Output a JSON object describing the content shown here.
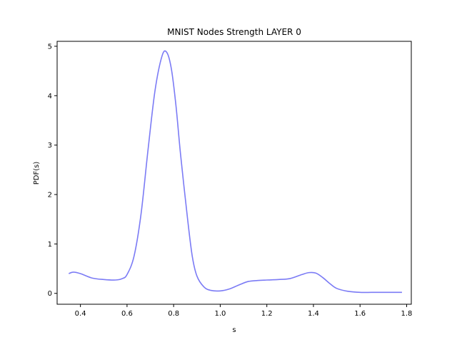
{
  "chart_data": {
    "type": "line",
    "title": "MNIST Nodes Strength LAYER 0",
    "xlabel": "s",
    "ylabel": "PDF(s)",
    "xlim": [
      0.3,
      1.82
    ],
    "ylim": [
      -0.22,
      5.1
    ],
    "xticks": [
      0.4,
      0.6,
      0.8,
      1.0,
      1.2,
      1.4,
      1.6,
      1.8
    ],
    "xtick_labels": [
      "0.4",
      "0.6",
      "0.8",
      "1.0",
      "1.2",
      "1.4",
      "1.6",
      "1.8"
    ],
    "yticks": [
      0,
      1,
      2,
      3,
      4,
      5
    ],
    "ytick_labels": [
      "0",
      "1",
      "2",
      "3",
      "4",
      "5"
    ],
    "grid": false,
    "series": [
      {
        "color": "#7b7bf5",
        "x": [
          0.35,
          0.37,
          0.4,
          0.45,
          0.5,
          0.55,
          0.58,
          0.6,
          0.63,
          0.66,
          0.69,
          0.72,
          0.75,
          0.77,
          0.79,
          0.81,
          0.83,
          0.86,
          0.88,
          0.9,
          0.93,
          0.96,
          1.0,
          1.04,
          1.08,
          1.12,
          1.16,
          1.2,
          1.25,
          1.3,
          1.35,
          1.38,
          1.41,
          1.44,
          1.47,
          1.5,
          1.55,
          1.6,
          1.65,
          1.7,
          1.75,
          1.78
        ],
        "y": [
          0.4,
          0.43,
          0.4,
          0.31,
          0.28,
          0.27,
          0.3,
          0.38,
          0.75,
          1.6,
          2.9,
          4.1,
          4.8,
          4.88,
          4.55,
          3.8,
          2.8,
          1.5,
          0.75,
          0.35,
          0.13,
          0.06,
          0.05,
          0.09,
          0.17,
          0.24,
          0.26,
          0.27,
          0.28,
          0.3,
          0.38,
          0.42,
          0.41,
          0.32,
          0.2,
          0.1,
          0.04,
          0.02,
          0.02,
          0.02,
          0.02,
          0.02
        ]
      }
    ]
  }
}
